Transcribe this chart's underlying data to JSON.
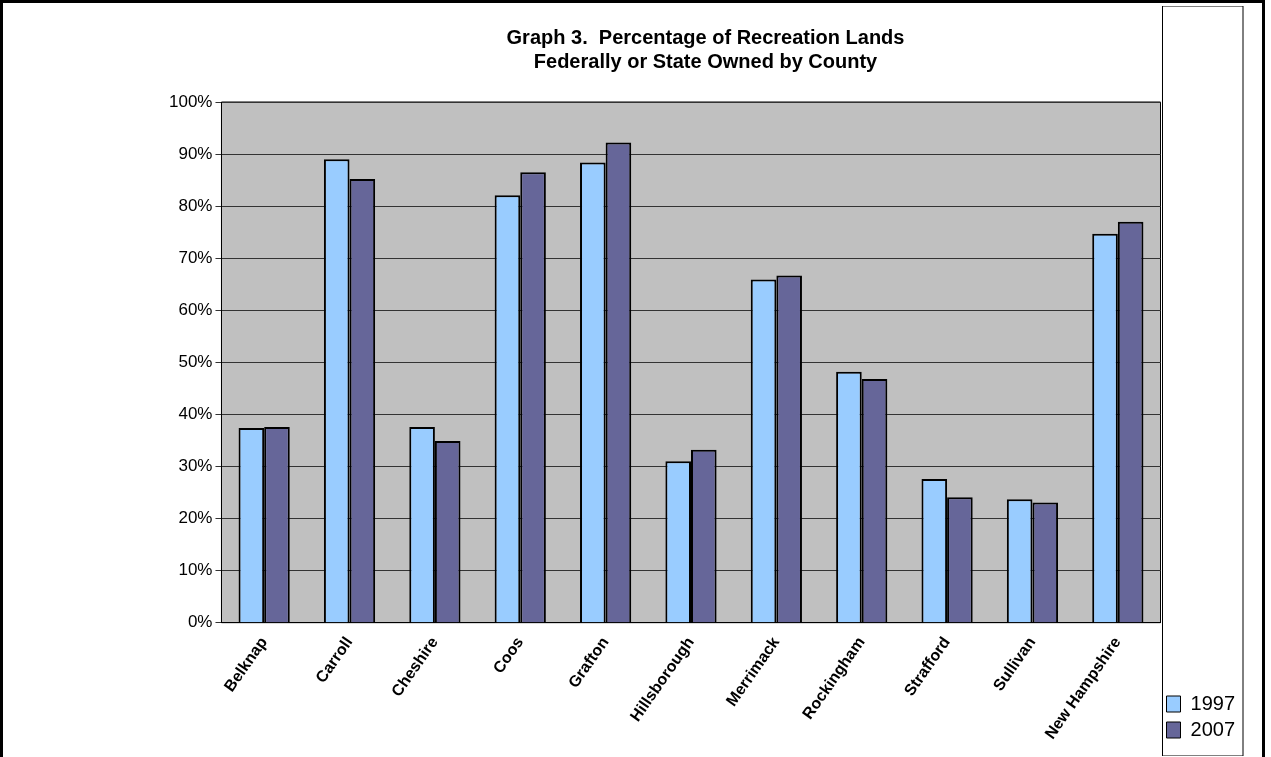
{
  "chart_data": {
    "type": "bar",
    "title": "Graph 3.  Percentage of Recreation Lands\nFederally or State Owned by County",
    "categories": [
      "Belknap",
      "Carroll",
      "Cheshire",
      "Coos",
      "Grafton",
      "Hillsborough",
      "Merrimack",
      "Rockingham",
      "Strafford",
      "Sullivan",
      "New Hampshire"
    ],
    "series": [
      {
        "name": "1997",
        "color": "#99ccff",
        "values": [
          37.4,
          89.0,
          37.6,
          82.1,
          88.4,
          31.0,
          65.9,
          48.2,
          27.6,
          23.7,
          74.7
        ]
      },
      {
        "name": "2007",
        "color": "#666699",
        "values": [
          37.6,
          85.2,
          34.9,
          86.5,
          92.2,
          33.2,
          66.7,
          46.8,
          24.1,
          23.1,
          77.0
        ]
      }
    ],
    "ylim": [
      0,
      100
    ],
    "yticks": [
      {
        "value": 0,
        "label": "0%"
      },
      {
        "value": 10,
        "label": "10%"
      },
      {
        "value": 20,
        "label": "20%"
      },
      {
        "value": 30,
        "label": "30%"
      },
      {
        "value": 40,
        "label": "40%"
      },
      {
        "value": 50,
        "label": "50%"
      },
      {
        "value": 60,
        "label": "60%"
      },
      {
        "value": 70,
        "label": "70%"
      },
      {
        "value": 80,
        "label": "80%"
      },
      {
        "value": 90,
        "label": "90%"
      },
      {
        "value": 100,
        "label": "100%"
      }
    ],
    "grid": "y",
    "legend": "bottom right"
  }
}
